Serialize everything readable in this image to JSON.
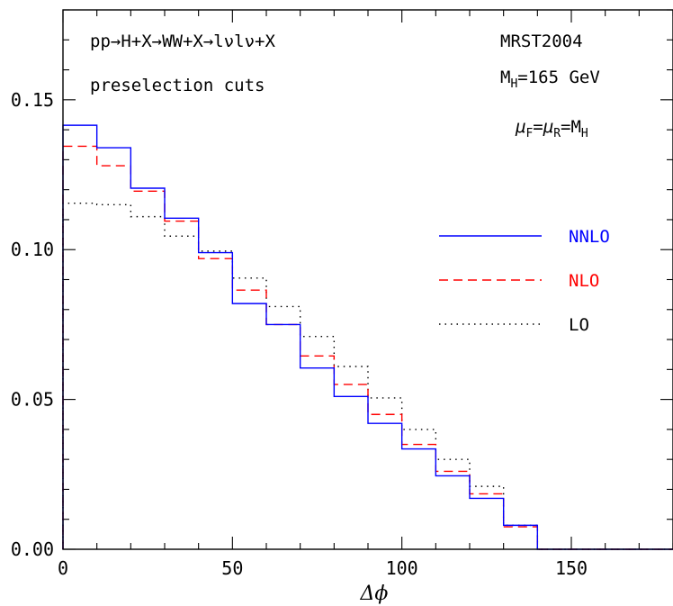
{
  "chart_data": {
    "type": "line",
    "step": true,
    "xlabel": "Δϕ",
    "ylabel": "",
    "xlim": [
      0,
      180
    ],
    "ylim": [
      0,
      0.18
    ],
    "x_ticks": [
      0,
      50,
      100,
      150
    ],
    "x_tick_labels": [
      "0",
      "50",
      "100",
      "150"
    ],
    "y_ticks": [
      0,
      0.05,
      0.1,
      0.15
    ],
    "y_tick_labels": [
      "0.00",
      "0.05",
      "0.10",
      "0.15"
    ],
    "bin_edges": [
      0,
      10,
      20,
      30,
      40,
      50,
      60,
      70,
      80,
      90,
      100,
      110,
      120,
      130,
      140,
      150,
      160,
      170,
      180
    ],
    "series": [
      {
        "name": "NNLO",
        "color": "#0000ff",
        "dash": "solid",
        "values": [
          0.1415,
          0.134,
          0.1205,
          0.1105,
          0.099,
          0.082,
          0.075,
          0.0605,
          0.051,
          0.042,
          0.0335,
          0.0245,
          0.017,
          0.008,
          0,
          0,
          0,
          0
        ]
      },
      {
        "name": "NLO",
        "color": "#ff0000",
        "dash": "dashed",
        "values": [
          0.1345,
          0.128,
          0.1195,
          0.1095,
          0.097,
          0.0865,
          0.075,
          0.0645,
          0.055,
          0.045,
          0.035,
          0.026,
          0.0185,
          0.0075,
          0,
          0,
          0,
          0
        ]
      },
      {
        "name": "LO",
        "color": "#000000",
        "dash": "dotted",
        "values": [
          0.1155,
          0.115,
          0.111,
          0.1045,
          0.0995,
          0.0905,
          0.081,
          0.071,
          0.061,
          0.0505,
          0.04,
          0.03,
          0.021,
          0.008,
          0,
          0,
          0,
          0
        ]
      }
    ],
    "annotations": {
      "process": "pp→H+X→WW+X→lνlν+X",
      "cuts": "preselection cuts",
      "pdf": "MRST2004",
      "mass_main": "M",
      "mass_sub": "H",
      "mass_rest": "=165 GeV",
      "scale_mu1": "μ",
      "scale_sub1": "F",
      "scale_eq1": "=",
      "scale_mu2": "μ",
      "scale_sub2": "R",
      "scale_eq2": "=M",
      "scale_sub3": "H"
    },
    "legend_position": "right"
  }
}
